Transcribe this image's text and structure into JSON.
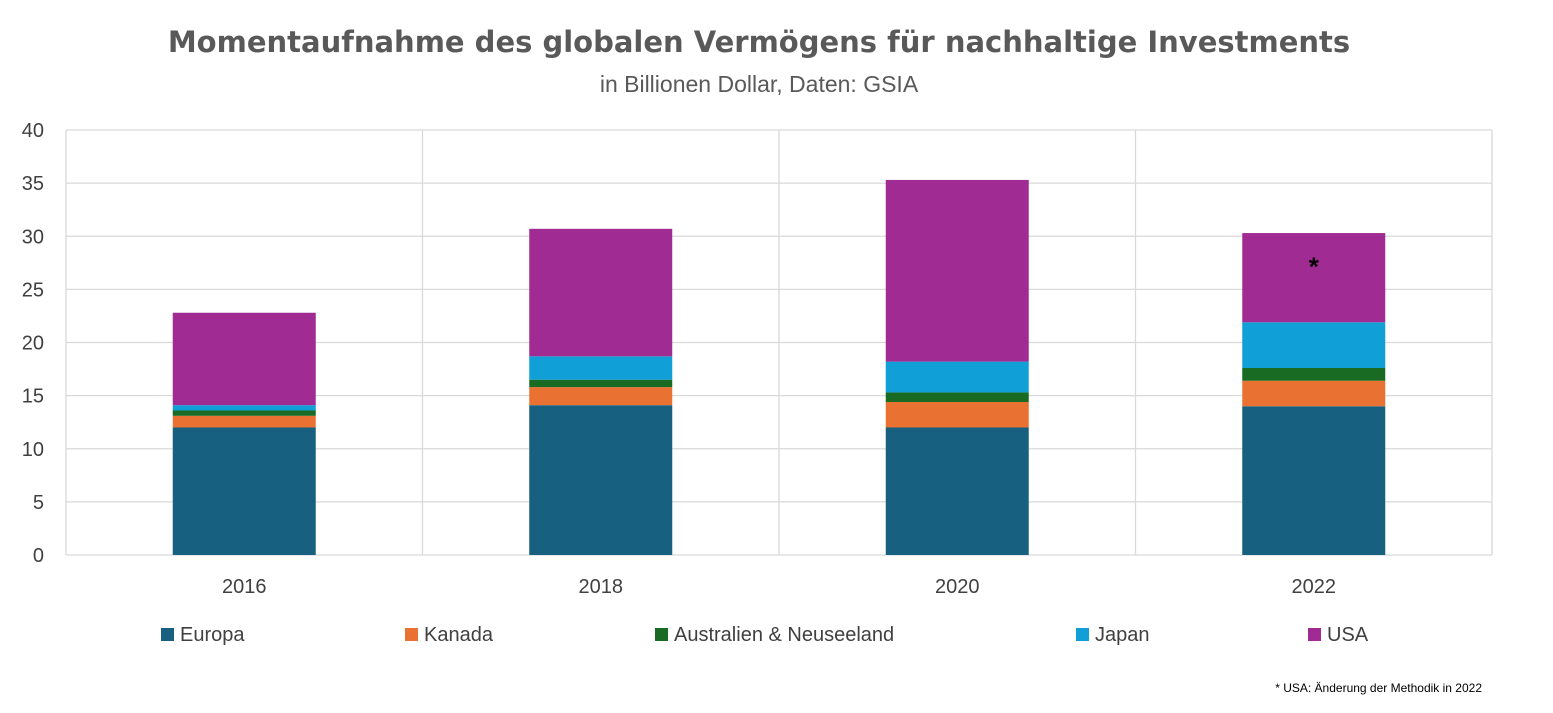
{
  "chart_data": {
    "type": "bar",
    "stacked": true,
    "title": "Momentaufnahme des globalen Vermögens für nachhaltige Investments",
    "subtitle": "in Billionen Dollar, Daten: GSIA",
    "xlabel": "",
    "ylabel": "",
    "ylim": [
      0,
      40
    ],
    "yticks": [
      "0",
      "5",
      "10",
      "15",
      "20",
      "25",
      "30",
      "35",
      "40"
    ],
    "categories": [
      "2016",
      "2018",
      "2020",
      "2022"
    ],
    "grid": true,
    "legend_position": "bottom",
    "series": [
      {
        "name": "Europa",
        "color": "#17607f",
        "values": [
          12.0,
          14.1,
          12.0,
          14.0
        ]
      },
      {
        "name": "Kanada",
        "color": "#e97132",
        "values": [
          1.1,
          1.7,
          2.4,
          2.4
        ]
      },
      {
        "name": "Australien & Neuseeland",
        "color": "#196b24",
        "values": [
          0.5,
          0.7,
          0.9,
          1.2
        ]
      },
      {
        "name": "Japan",
        "color": "#119fd8",
        "values": [
          0.5,
          2.2,
          2.9,
          4.3
        ]
      },
      {
        "name": "USA",
        "color": "#a02b93",
        "values": [
          8.7,
          12.0,
          17.1,
          8.4
        ]
      }
    ],
    "annotations": [
      {
        "category": "2022",
        "series": "USA",
        "text": "*"
      }
    ],
    "footnote": "* USA: Änderung der Methodik in 2022"
  }
}
